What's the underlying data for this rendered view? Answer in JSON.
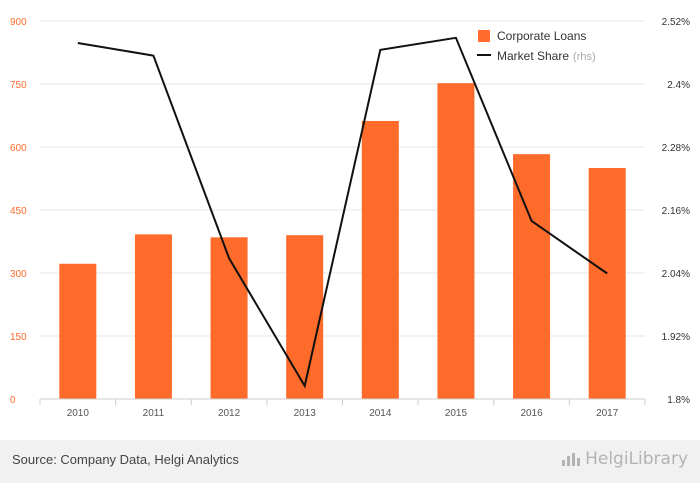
{
  "colors": {
    "bar": "#ff6b2b",
    "line": "#111111",
    "grid": "#e6e6e6",
    "left_tick": "#ff6b2b",
    "right_tick": "#333333",
    "x_tick": "#555555",
    "rhs_note": "#aaaaaa",
    "footer_bg": "#f1f1f1"
  },
  "chart_data": {
    "type": "bar",
    "title": "",
    "xlabel": "",
    "ylabel": "",
    "categories": [
      "2010",
      "2011",
      "2012",
      "2013",
      "2014",
      "2015",
      "2016",
      "2017"
    ],
    "series": [
      {
        "name": "Corporate Loans",
        "type": "bar",
        "axis": "left",
        "values": [
          322,
          392,
          385,
          390,
          662,
          752,
          583,
          550
        ]
      },
      {
        "name": "Market Share",
        "name_suffix": "(rhs)",
        "type": "line",
        "axis": "right",
        "values": [
          2.478,
          2.454,
          2.068,
          1.825,
          2.465,
          2.488,
          2.139,
          2.039
        ]
      }
    ],
    "y_left": {
      "lim": [
        0,
        900
      ],
      "ticks": [
        0,
        150,
        300,
        450,
        600,
        750,
        900
      ],
      "tick_labels": [
        "0",
        "150",
        "300",
        "450",
        "600",
        "750",
        "900"
      ]
    },
    "y_right": {
      "lim": [
        1.8,
        2.52
      ],
      "ticks": [
        1.8,
        1.92,
        2.04,
        2.16,
        2.28,
        2.4,
        2.52
      ],
      "tick_labels": [
        "1.8%",
        "1.92%",
        "2.04%",
        "2.16%",
        "2.28%",
        "2.4%",
        "2.52%"
      ]
    },
    "grid": true,
    "legend": "top-right"
  },
  "footer": {
    "source": "Source: Company Data, Helgi Analytics",
    "brand": "HelgiLibrary"
  },
  "icons": {
    "brand": "chart-bars-icon"
  }
}
